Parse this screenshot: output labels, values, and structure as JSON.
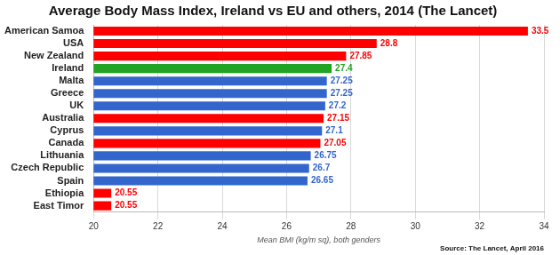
{
  "chart_data": {
    "type": "bar",
    "orientation": "horizontal",
    "title": "Average Body Mass Index, Ireland vs EU and others, 2014 (The Lancet)",
    "x_label": "Mean BMI (kg/m sq), both genders",
    "source": "Source: The Lancet, April 2016",
    "categories": [
      "American Samoa",
      "USA",
      "New Zealand",
      "Ireland",
      "Malta",
      "Greece",
      "UK",
      "Australia",
      "Cyprus",
      "Canada",
      "Lithuania",
      "Czech Republic",
      "Spain",
      "Ethiopia",
      "East Timor"
    ],
    "values": [
      33.5,
      28.8,
      27.85,
      27.4,
      27.25,
      27.25,
      27.2,
      27.15,
      27.1,
      27.05,
      26.75,
      26.7,
      26.65,
      20.55,
      20.55
    ],
    "colors": [
      "#ff0000",
      "#ff0000",
      "#ff0000",
      "#22a322",
      "#3366cc",
      "#3366cc",
      "#3366cc",
      "#ff0000",
      "#3366cc",
      "#ff0000",
      "#3366cc",
      "#3366cc",
      "#3366cc",
      "#ff0000",
      "#ff0000"
    ],
    "xlim": [
      20,
      34
    ],
    "xticks": [
      20,
      22,
      24,
      26,
      28,
      30,
      32,
      34
    ],
    "grid": true,
    "data_labels": true
  }
}
